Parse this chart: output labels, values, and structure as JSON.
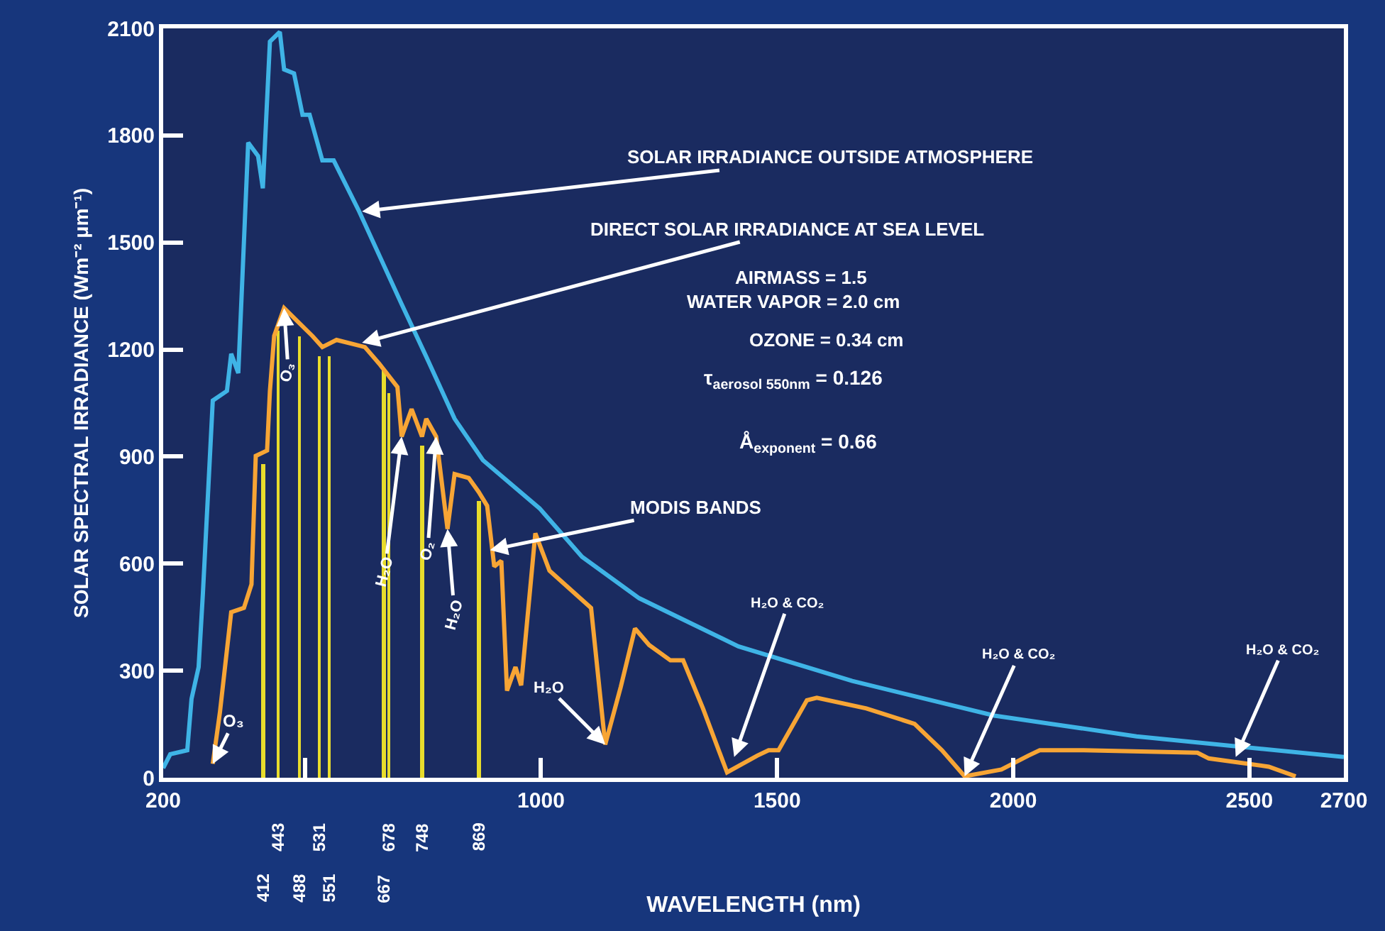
{
  "chart_data": {
    "type": "line",
    "xlabel": "WAVELENGTH (nm)",
    "ylabel": "SOLAR SPECTRAL IRRADIANCE (Wm⁻² μm⁻¹)",
    "xlim": [
      200,
      2700
    ],
    "ylim": [
      0,
      2100
    ],
    "xticks": [
      200,
      {
        "value": 500,
        "label": null
      },
      1000,
      1500,
      2000,
      2500,
      2700
    ],
    "yticks": [
      0,
      300,
      600,
      900,
      1200,
      1500,
      1800,
      2100
    ],
    "grid": false,
    "series": [
      {
        "color": "#3fb4e6",
        "x": [
          200,
          215,
          251,
          260,
          275,
          284,
          296,
          305,
          335,
          344,
          359,
          380,
          401,
          411,
          426,
          447,
          456,
          477,
          495,
          510,
          537,
          561,
          615,
          705,
          757,
          817,
          877,
          997,
          1087,
          1208,
          1418,
          1659,
          1960,
          2261,
          2700
        ],
        "values": [
          27,
          66,
          77,
          221,
          310,
          515,
          824,
          1057,
          1084,
          1188,
          1134,
          1780,
          1742,
          1652,
          2063,
          2090,
          1985,
          1974,
          1858,
          1858,
          1730,
          1730,
          1587,
          1327,
          1180,
          1006,
          890,
          755,
          619,
          503,
          368,
          271,
          174,
          116,
          58
        ]
      },
      {
        "color": "#f7a535",
        "x": [
          305,
          320,
          344,
          371,
          387,
          396,
          420,
          426,
          435,
          456,
          486,
          516,
          537,
          567,
          627,
          657,
          696,
          705,
          726,
          748,
          757,
          778,
          802,
          817,
          847,
          868,
          886,
          901,
          916,
          928,
          946,
          958,
          988,
          1018,
          1106,
          1136,
          1169,
          1199,
          1229,
          1274,
          1301,
          1343,
          1394,
          1458,
          1482,
          1503,
          1563,
          1584,
          1689,
          1791,
          1849,
          1897,
          1975,
          2032,
          2056,
          2149,
          2390,
          2414,
          2541,
          2598
        ],
        "values": [
          39,
          182,
          464,
          476,
          542,
          902,
          917,
          1084,
          1238,
          1316,
          1277,
          1238,
          1207,
          1227,
          1207,
          1161,
          1095,
          956,
          1033,
          956,
          1006,
          956,
          697,
          851,
          840,
          801,
          762,
          592,
          608,
          244,
          310,
          259,
          685,
          580,
          476,
          93,
          255,
          418,
          372,
          329,
          329,
          194,
          15,
          62,
          77,
          77,
          217,
          224,
          194,
          151,
          77,
          4,
          23,
          62,
          77,
          77,
          70,
          54,
          31,
          4
        ]
      },
      {
        "type": "bar",
        "color": "#e8dc2c",
        "x": [
          412,
          443,
          488,
          531,
          551,
          667,
          678,
          748,
          869
        ],
        "values": [
          878,
          1254,
          1238,
          1180,
          1180,
          1142,
          1076,
          929,
          774
        ]
      }
    ],
    "annotations": [
      {
        "text": "SOLAR IRRADIANCE OUTSIDE ATMOSPHERE",
        "x": 621,
        "y": 1587
      },
      {
        "text": "DIRECT SOLAR IRRADIANCE AT SEA LEVEL",
        "x": 621,
        "y": 1219
      },
      "AIRMASS = 1.5",
      "WATER VAPOR = 2.0 cm",
      "OZONE = 0.34 cm",
      "τ$_{aerosol 550nm}$ = 0.126",
      "Å$_{exponent}$ = 0.66",
      {
        "text": "MODIS BANDS",
        "x": 892,
        "y": 638
      },
      {
        "text": "O₃",
        "x": 305,
        "y": 39
      },
      {
        "text": "O₃",
        "x": 456,
        "y": 1316
      },
      {
        "text": "H₂O",
        "x": 705,
        "y": 956
      },
      {
        "text": "O₂",
        "x": 778,
        "y": 956
      },
      {
        "text": "H₂O",
        "x": 802,
        "y": 697
      },
      {
        "text": "H₂O",
        "x": 1136,
        "y": 93
      },
      {
        "text": "H₂O & CO₂",
        "x": 1409,
        "y": 58
      },
      {
        "text": "H₂O & CO₂",
        "x": 1897,
        "y": 4
      },
      {
        "text": "H₂O & CO₂",
        "x": 2471,
        "y": 58
      },
      "412",
      "443",
      "488",
      "531",
      "551",
      "667",
      "678",
      "748",
      "869"
    ]
  }
}
